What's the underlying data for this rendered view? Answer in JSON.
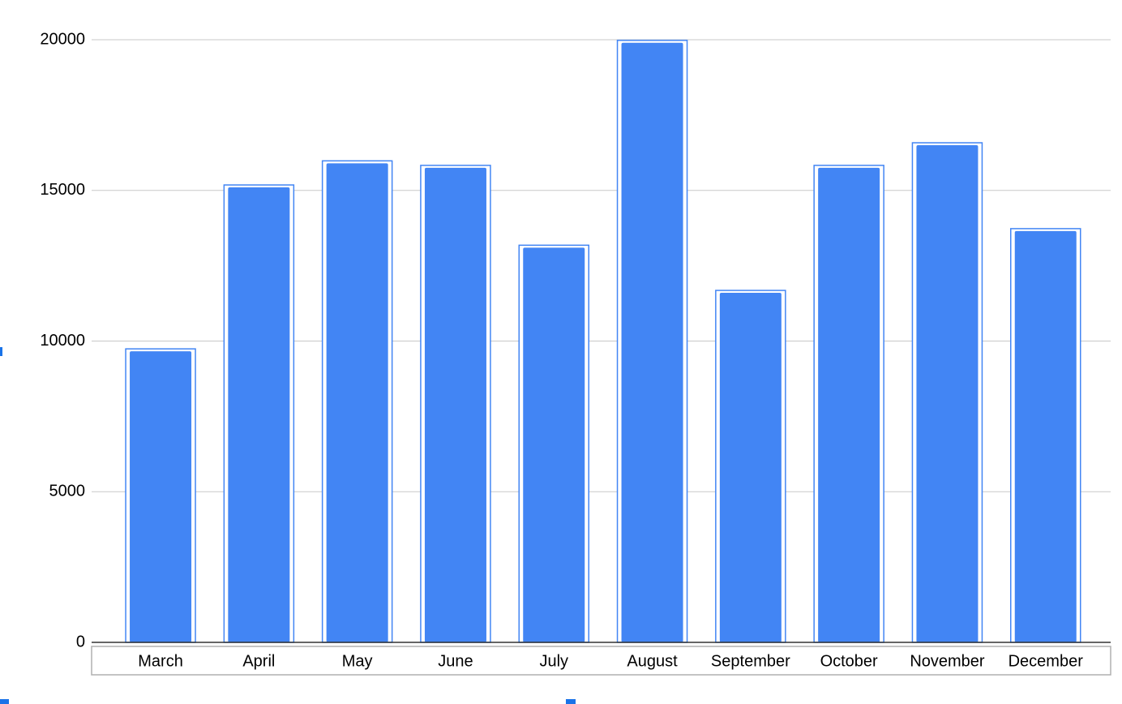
{
  "chart_data": {
    "type": "bar",
    "categories": [
      "March",
      "April",
      "May",
      "June",
      "July",
      "August",
      "September",
      "October",
      "November",
      "December"
    ],
    "values": [
      9660,
      15100,
      15900,
      15750,
      13100,
      19900,
      11600,
      15750,
      16500,
      13650
    ],
    "color": "#4285f4",
    "ylim": [
      0,
      20000
    ],
    "yticks": [
      0,
      5000,
      10000,
      15000,
      20000
    ],
    "grid": true
  }
}
